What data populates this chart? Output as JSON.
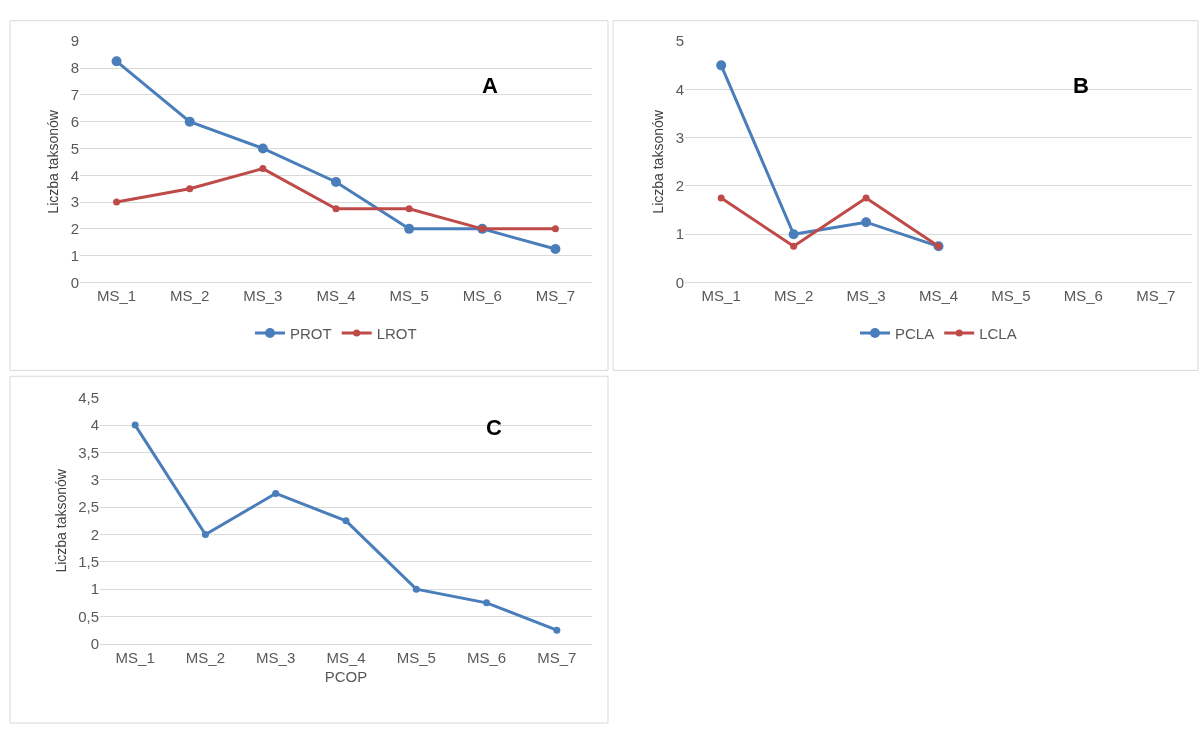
{
  "chart_data": [
    {
      "type": "line",
      "annotations": [
        "A"
      ],
      "ylabel": "Liczba taksonów",
      "categories": [
        "MS_1",
        "MS_2",
        "MS_3",
        "MS_4",
        "MS_5",
        "MS_6",
        "MS_7"
      ],
      "ylim": [
        0,
        9
      ],
      "yticks": [
        0,
        1,
        2,
        3,
        4,
        5,
        6,
        7,
        8,
        9
      ],
      "grid": "y",
      "legend": "bottom",
      "marker": "circle",
      "series": [
        {
          "name": "PROT",
          "color": "#4a7ebb",
          "values": [
            8.25,
            6,
            5,
            3.75,
            2,
            2,
            1.25
          ]
        },
        {
          "name": "LROT",
          "color": "#be4b48",
          "values": [
            3,
            3.5,
            4.25,
            2.75,
            2.75,
            2,
            2
          ]
        }
      ]
    },
    {
      "type": "line",
      "annotations": [
        "B"
      ],
      "ylabel": "Liczba taksonów",
      "categories": [
        "MS_1",
        "MS_2",
        "MS_3",
        "MS_4",
        "MS_5",
        "MS_6",
        "MS_7"
      ],
      "ylim": [
        0,
        5
      ],
      "yticks": [
        0,
        1,
        2,
        3,
        4,
        5
      ],
      "grid": "y",
      "legend": "bottom",
      "marker": "circle",
      "series": [
        {
          "name": "PCLA",
          "color": "#4a7ebb",
          "values": [
            4.5,
            1,
            1.25,
            0.75,
            null,
            null,
            null
          ]
        },
        {
          "name": "LCLA",
          "color": "#be4b48",
          "values": [
            1.75,
            0.75,
            1.75,
            0.75,
            null,
            null,
            null
          ]
        }
      ]
    },
    {
      "type": "line",
      "annotations": [
        "C"
      ],
      "ylabel": "Liczba taksonów",
      "xlabel": "PCOP",
      "categories": [
        "MS_1",
        "MS_2",
        "MS_3",
        "MS_4",
        "MS_5",
        "MS_6",
        "MS_7"
      ],
      "ylim": [
        0,
        4.5
      ],
      "yticks": [
        0,
        {
          "value": 0.5,
          "label": "0,5"
        },
        1,
        {
          "value": 1.5,
          "label": "1,5"
        },
        2,
        {
          "value": 2.5,
          "label": "2,5"
        },
        3,
        {
          "value": 3.5,
          "label": "3,5"
        },
        4,
        {
          "value": 4.5,
          "label": "4,5"
        }
      ],
      "grid": "y",
      "marker": "circle",
      "series": [
        {
          "color": "#4a7ebb",
          "values": [
            4,
            2,
            2.75,
            2.25,
            1,
            0.75,
            0.25
          ]
        }
      ]
    }
  ]
}
